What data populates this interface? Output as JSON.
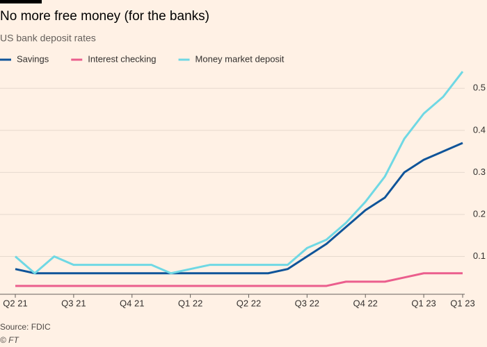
{
  "chart_data": {
    "type": "line",
    "title": "No more free money (for the banks)",
    "subtitle": "US bank deposit rates",
    "source": "Source: FDIC",
    "credit": "© FT",
    "categories": [
      "Q2 21",
      null,
      null,
      "Q3 21",
      null,
      null,
      "Q4 21",
      null,
      null,
      "Q1 22",
      null,
      null,
      "Q2 22",
      null,
      null,
      "Q3 22",
      null,
      null,
      "Q4 22",
      null,
      null,
      "Q1 23",
      null,
      "Q1 23"
    ],
    "series": [
      {
        "name": "Savings",
        "color": "#0f5499",
        "values": [
          0.07,
          0.06,
          0.06,
          0.06,
          0.06,
          0.06,
          0.06,
          0.06,
          0.06,
          0.06,
          0.06,
          0.06,
          0.06,
          0.06,
          0.07,
          0.1,
          0.13,
          0.17,
          0.21,
          0.24,
          0.3,
          0.33,
          0.35,
          0.37
        ]
      },
      {
        "name": "Interest checking",
        "color": "#eb5e8d",
        "values": [
          0.03,
          0.03,
          0.03,
          0.03,
          0.03,
          0.03,
          0.03,
          0.03,
          0.03,
          0.03,
          0.03,
          0.03,
          0.03,
          0.03,
          0.03,
          0.03,
          0.03,
          0.04,
          0.04,
          0.04,
          0.05,
          0.06,
          0.06,
          0.06
        ]
      },
      {
        "name": "Money market deposit",
        "color": "#6fd8e4",
        "values": [
          0.1,
          0.06,
          0.1,
          0.08,
          0.08,
          0.08,
          0.08,
          0.08,
          0.06,
          0.07,
          0.08,
          0.08,
          0.08,
          0.08,
          0.08,
          0.12,
          0.14,
          0.18,
          0.23,
          0.29,
          0.38,
          0.44,
          0.48,
          0.54
        ]
      }
    ],
    "ylim": [
      0.02,
      0.55
    ],
    "yticks": [
      0.1,
      0.2,
      0.3,
      0.4,
      0.5
    ],
    "grid": true,
    "legend": "top"
  }
}
